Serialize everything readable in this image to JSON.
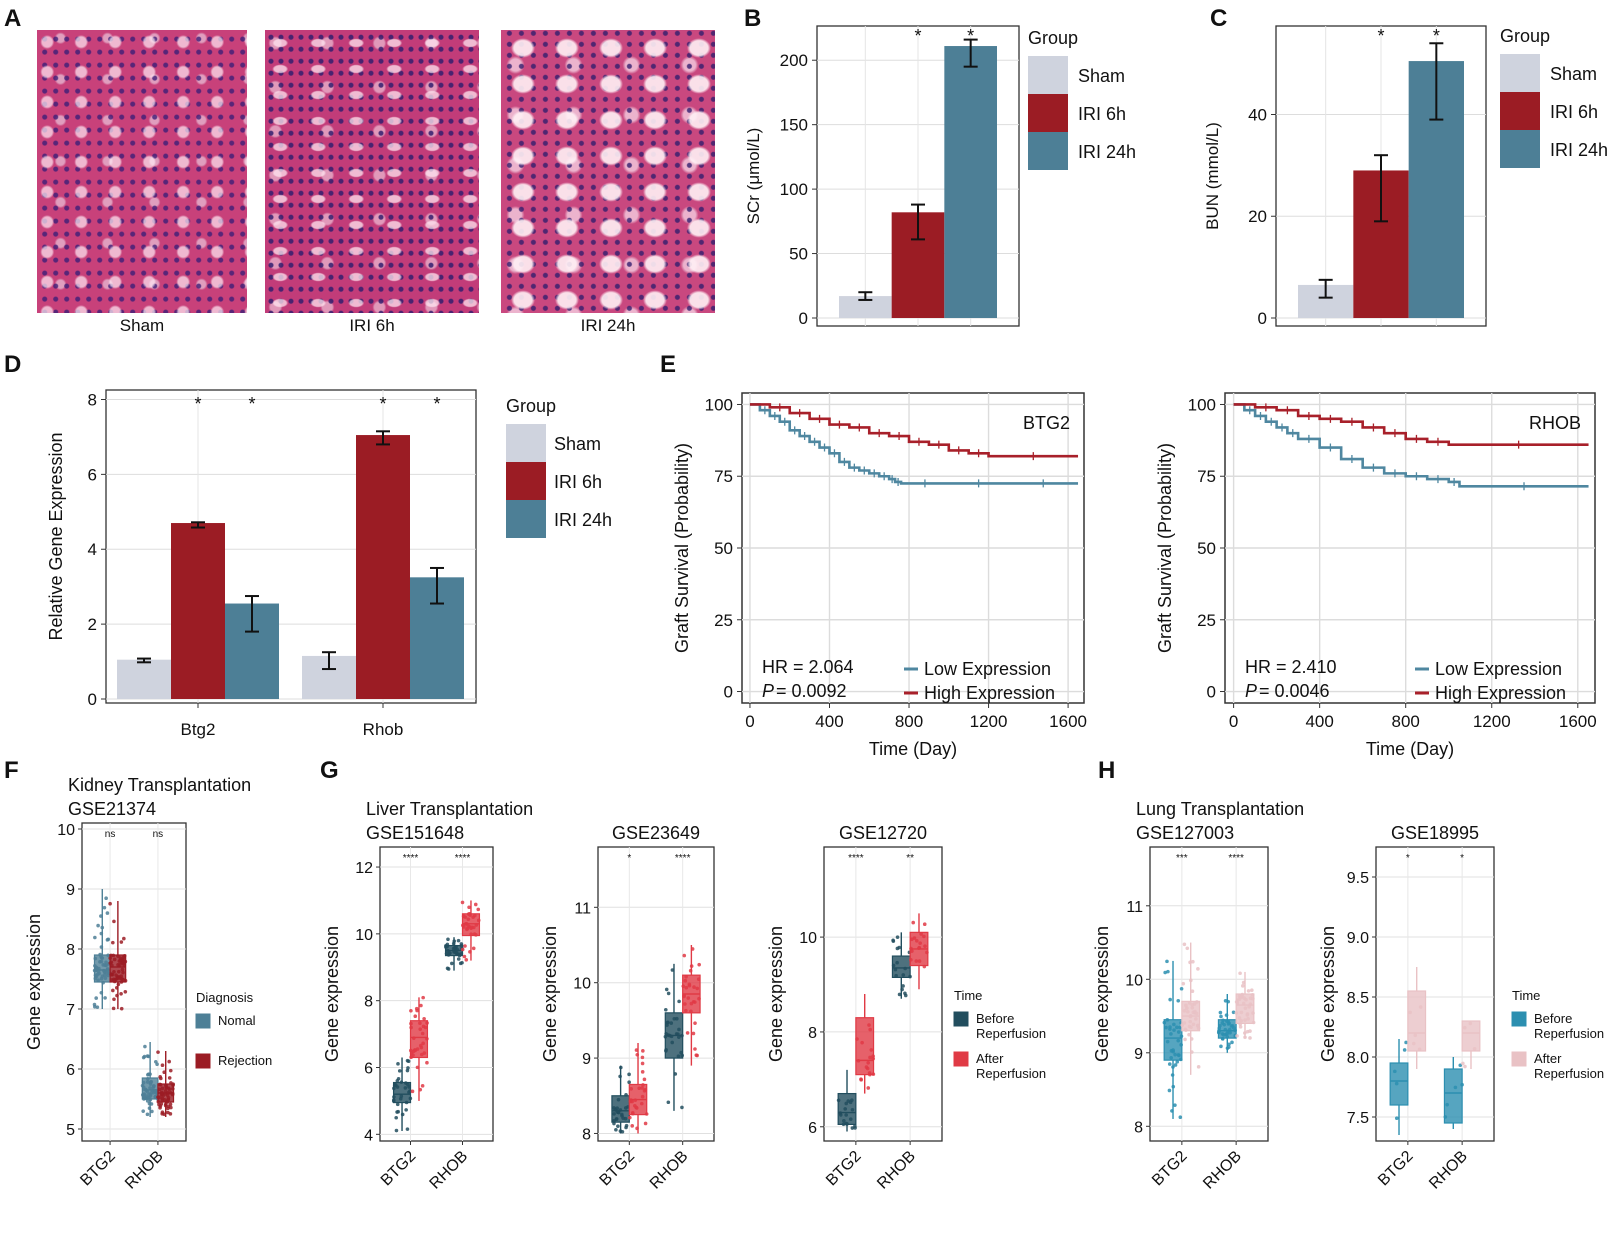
{
  "colors": {
    "sham": "#cfd3de",
    "iri6": "#9b1c24",
    "iri24": "#4d7f96",
    "low_expr": "#4f87a0",
    "high_expr": "#a8202a",
    "nomal": "#4d7f96",
    "rejection": "#9b1c24",
    "before_dark": "#224e5e",
    "after_red": "#e03a45",
    "before_teal": "#2c8fb0",
    "after_pink": "#e9c2c5"
  },
  "panel_labels": [
    "A",
    "B",
    "C",
    "D",
    "E",
    "F",
    "G",
    "H"
  ],
  "panel_a": {
    "captions": [
      "Sham",
      "IRI 6h",
      "IRI 24h"
    ]
  },
  "chart_data": [
    {
      "id": "B",
      "type": "bar",
      "ylabel": "SCr (μmol/L)",
      "yticks": [
        0,
        50,
        100,
        150,
        200
      ],
      "ylim": [
        0,
        225
      ],
      "legend_title": "Group",
      "series": [
        {
          "name": "Sham",
          "value": 17,
          "err": [
            14,
            20
          ],
          "sig": ""
        },
        {
          "name": "IRI 6h",
          "value": 82,
          "err": [
            61,
            88
          ],
          "sig": "*"
        },
        {
          "name": "IRI 24h",
          "value": 211,
          "err": [
            195,
            216
          ],
          "sig": "*"
        }
      ]
    },
    {
      "id": "C",
      "type": "bar",
      "ylabel": "BUN (mmol/L)",
      "yticks": [
        0,
        20,
        40
      ],
      "ylim": [
        0,
        57
      ],
      "legend_title": "Group",
      "series": [
        {
          "name": "Sham",
          "value": 6.5,
          "err": [
            4,
            7.5
          ],
          "sig": ""
        },
        {
          "name": "IRI 6h",
          "value": 29,
          "err": [
            19,
            32
          ],
          "sig": "*"
        },
        {
          "name": "IRI 24h",
          "value": 50.5,
          "err": [
            39,
            54
          ],
          "sig": "*"
        }
      ]
    },
    {
      "id": "D",
      "type": "bar",
      "ylabel": "Relative Gene Expression",
      "yticks": [
        0,
        2,
        4,
        6,
        8
      ],
      "ylim": [
        0,
        8.2
      ],
      "categories": [
        "Btg2",
        "Rhob"
      ],
      "legend_title": "Group",
      "series": [
        {
          "name": "Sham",
          "values": [
            1.05,
            1.15
          ],
          "err": [
            [
              0.98,
              1.08
            ],
            [
              0.8,
              1.25
            ]
          ],
          "sig": [
            "",
            ""
          ]
        },
        {
          "name": "IRI 6h",
          "values": [
            4.7,
            7.05
          ],
          "err": [
            [
              4.58,
              4.72
            ],
            [
              6.8,
              7.15
            ]
          ],
          "sig": [
            "*",
            "*"
          ]
        },
        {
          "name": "IRI 24h",
          "values": [
            2.55,
            3.25
          ],
          "err": [
            [
              1.8,
              2.75
            ],
            [
              2.55,
              3.5
            ]
          ],
          "sig": [
            "*",
            "*"
          ]
        }
      ]
    },
    {
      "id": "E1",
      "type": "line",
      "label": "BTG2",
      "xlabel": "Time (Day)",
      "ylabel": "Graft Survival (Probability)",
      "xticks": [
        0,
        400,
        800,
        1200,
        1600
      ],
      "yticks": [
        0,
        25,
        50,
        75,
        100
      ],
      "xlim": [
        -40,
        1680
      ],
      "ylim": [
        -4,
        104
      ],
      "hr_text": "HR = 2.064",
      "p_label": "P",
      "p_text": " = 0.0092",
      "series": [
        {
          "name": "Low Expression",
          "x": [
            0,
            50,
            100,
            150,
            200,
            250,
            300,
            350,
            400,
            450,
            500,
            550,
            600,
            650,
            700,
            730,
            760,
            1000,
            1300,
            1650
          ],
          "y": [
            100,
            98,
            96,
            94,
            91,
            89,
            87,
            85,
            83,
            80,
            78,
            77,
            76,
            75,
            74,
            73,
            72.5,
            72.5,
            72.5,
            72.5
          ]
        },
        {
          "name": "High Expression",
          "x": [
            0,
            100,
            200,
            300,
            400,
            500,
            600,
            700,
            800,
            900,
            1000,
            1100,
            1200,
            1650
          ],
          "y": [
            100,
            99,
            97,
            95,
            93,
            92,
            90,
            89,
            87,
            86,
            84,
            83,
            82,
            82
          ]
        }
      ]
    },
    {
      "id": "E2",
      "type": "line",
      "label": "RHOB",
      "xlabel": "Time (Day)",
      "ylabel": "Graft Survival (Probability)",
      "xticks": [
        0,
        400,
        800,
        1200,
        1600
      ],
      "yticks": [
        0,
        25,
        50,
        75,
        100
      ],
      "xlim": [
        -40,
        1680
      ],
      "ylim": [
        -4,
        104
      ],
      "hr_text": "HR = 2.410",
      "p_label": "P",
      "p_text": " = 0.0046",
      "series": [
        {
          "name": "Low Expression",
          "x": [
            0,
            50,
            100,
            150,
            200,
            250,
            300,
            400,
            500,
            600,
            700,
            800,
            900,
            1000,
            1050,
            1650
          ],
          "y": [
            100,
            98,
            96,
            94,
            92,
            90,
            88,
            85,
            81,
            78,
            76,
            75,
            74,
            73,
            71.5,
            71.5
          ]
        },
        {
          "name": "High Expression",
          "x": [
            0,
            100,
            200,
            300,
            400,
            500,
            600,
            700,
            800,
            900,
            1000,
            1650
          ],
          "y": [
            100,
            99,
            98,
            96,
            95,
            94,
            92,
            90,
            88,
            87,
            86,
            86
          ]
        }
      ]
    },
    {
      "id": "F",
      "type": "box",
      "title1": "Kidney Transplantation",
      "title2": "GSE21374",
      "ylabel": "Gene expression",
      "yticks": [
        5,
        6,
        7,
        8,
        9,
        10
      ],
      "ylim": [
        4.8,
        10.1
      ],
      "categories": [
        "BTG2",
        "RHOB"
      ],
      "sig": [
        "ns",
        "ns"
      ],
      "legend_title": "Diagnosis",
      "legend_items": [
        "Nomal",
        "Rejection"
      ],
      "groups": [
        {
          "name": "Nomal",
          "stats": [
            [
              7.0,
              7.45,
              7.65,
              7.9,
              9.0
            ],
            [
              5.2,
              5.5,
              5.65,
              5.85,
              6.45
            ]
          ]
        },
        {
          "name": "Rejection",
          "stats": [
            [
              7.0,
              7.45,
              7.7,
              7.9,
              8.8
            ],
            [
              5.2,
              5.45,
              5.6,
              5.75,
              6.3
            ]
          ]
        }
      ]
    },
    {
      "id": "G1",
      "type": "box",
      "title1": "Liver Transplantation",
      "title2": "GSE151648",
      "ylabel": "Gene expression",
      "yticks": [
        4,
        6,
        8,
        10,
        12
      ],
      "ylim": [
        3.8,
        12.6
      ],
      "categories": [
        "BTG2",
        "RHOB"
      ],
      "sig": [
        "****",
        "****"
      ],
      "groups": [
        {
          "name": "Before",
          "stats": [
            [
              4.1,
              4.95,
              5.2,
              5.55,
              6.3
            ],
            [
              8.9,
              9.35,
              9.5,
              9.65,
              9.9
            ]
          ]
        },
        {
          "name": "After",
          "stats": [
            [
              5.0,
              6.3,
              6.9,
              7.4,
              8.1
            ],
            [
              9.2,
              9.95,
              10.3,
              10.6,
              11.0
            ]
          ]
        }
      ]
    },
    {
      "id": "G2",
      "type": "box",
      "title1": "",
      "title2": "GSE23649",
      "ylabel": "Gene expression",
      "yticks": [
        8,
        9,
        10,
        11
      ],
      "ylim": [
        7.9,
        11.8
      ],
      "categories": [
        "BTG2",
        "RHOB"
      ],
      "sig": [
        "*",
        "****"
      ],
      "groups": [
        {
          "name": "Before",
          "stats": [
            [
              8.0,
              8.15,
              8.3,
              8.5,
              8.9
            ],
            [
              8.3,
              9.0,
              9.3,
              9.6,
              10.25
            ]
          ]
        },
        {
          "name": "After",
          "stats": [
            [
              8.0,
              8.25,
              8.45,
              8.65,
              9.2
            ],
            [
              8.9,
              9.6,
              9.85,
              10.1,
              10.5
            ]
          ]
        }
      ]
    },
    {
      "id": "G3",
      "type": "box",
      "title1": "",
      "title2": "GSE12720",
      "ylabel": "Gene expression",
      "yticks": [
        6,
        8,
        10
      ],
      "ylim": [
        5.7,
        11.9
      ],
      "categories": [
        "BTG2",
        "RHOB"
      ],
      "sig": [
        "****",
        "**"
      ],
      "legend_title": "Time",
      "legend_items": [
        "Before Reperfusion",
        "After Reperfusion"
      ],
      "groups": [
        {
          "name": "Before",
          "stats": [
            [
              5.9,
              6.05,
              6.3,
              6.7,
              7.2
            ],
            [
              8.7,
              9.15,
              9.35,
              9.6,
              10.1
            ]
          ]
        },
        {
          "name": "After",
          "stats": [
            [
              6.7,
              7.1,
              7.4,
              8.3,
              8.8
            ],
            [
              8.9,
              9.4,
              9.75,
              10.1,
              10.5
            ]
          ]
        }
      ]
    },
    {
      "id": "H1",
      "type": "box",
      "title1": "Lung Transplantation",
      "title2": "GSE127003",
      "ylabel": "Gene expression",
      "yticks": [
        8,
        9,
        10,
        11
      ],
      "ylim": [
        7.8,
        11.8
      ],
      "categories": [
        "BTG2",
        "RHOB"
      ],
      "sig": [
        "***",
        "****"
      ],
      "groups": [
        {
          "name": "Before",
          "stats": [
            [
              8.1,
              8.9,
              9.2,
              9.45,
              10.25
            ],
            [
              9.0,
              9.2,
              9.3,
              9.45,
              9.8
            ]
          ]
        },
        {
          "name": "After",
          "stats": [
            [
              8.7,
              9.3,
              9.5,
              9.7,
              10.5
            ],
            [
              9.2,
              9.4,
              9.65,
              9.8,
              10.1
            ]
          ]
        }
      ]
    },
    {
      "id": "H2",
      "type": "box",
      "title1": "",
      "title2": "GSE18995",
      "ylabel": "Gene expression",
      "yticks": [
        7.5,
        8.0,
        8.5,
        9.0,
        9.5
      ],
      "ytick_labels": [
        "7.5",
        "8.0",
        "8.5",
        "9.0",
        "9.5"
      ],
      "ylim": [
        7.3,
        9.75
      ],
      "categories": [
        "BTG2",
        "RHOB"
      ],
      "sig": [
        "*",
        "*"
      ],
      "legend_title": "Time",
      "legend_items": [
        "Before Reperfusion",
        "After Reperfusion"
      ],
      "groups": [
        {
          "name": "Before",
          "stats": [
            [
              7.35,
              7.6,
              7.8,
              7.95,
              8.15
            ],
            [
              7.4,
              7.45,
              7.7,
              7.9,
              8.0
            ]
          ]
        },
        {
          "name": "After",
          "stats": [
            [
              7.9,
              8.05,
              8.2,
              8.55,
              8.75
            ],
            [
              7.9,
              8.05,
              8.2,
              8.3,
              8.3
            ]
          ]
        }
      ]
    }
  ]
}
